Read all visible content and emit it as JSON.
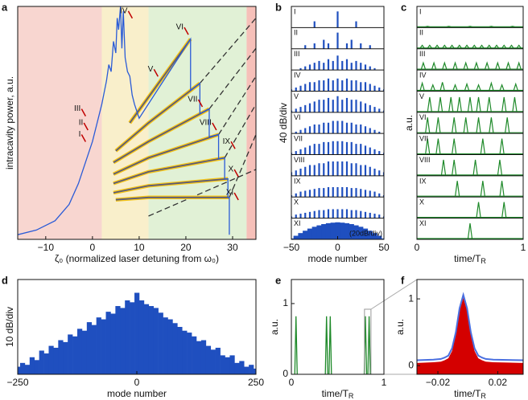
{
  "chart_data": [
    {
      "type": "line",
      "panel": "a",
      "xlabel": "ζ₀ (normalized laser detuning from ω₀)",
      "ylabel": "intracavity power, a.u.",
      "xlim": [
        -16,
        35
      ],
      "xticks": [
        {
          "value": -10,
          "label": "−10"
        },
        0,
        10,
        20,
        30
      ],
      "ylim": [
        0,
        1
      ],
      "regions": [
        {
          "x": [
            -16,
            2
          ],
          "color": "#f7cfc8"
        },
        {
          "x": [
            2,
            12
          ],
          "color": "#f8ecc2"
        },
        {
          "x": [
            12,
            33
          ],
          "color": "#dcefcf"
        },
        {
          "x": [
            33,
            35
          ],
          "color": "#f4b5ad"
        }
      ],
      "series": [
        {
          "color": "#333333",
          "dash": true,
          "x": [
            23,
            35
          ],
          "values": [
            0.67,
            0.95
          ]
        },
        {
          "color": "#333333",
          "dash": true,
          "x": [
            25,
            35
          ],
          "values": [
            0.56,
            0.82
          ]
        },
        {
          "color": "#333333",
          "dash": true,
          "x": [
            27,
            35
          ],
          "values": [
            0.45,
            0.7
          ]
        },
        {
          "color": "#333333",
          "dash": true,
          "x": [
            28.3,
            35
          ],
          "values": [
            0.35,
            0.58
          ]
        },
        {
          "color": "#333333",
          "dash": true,
          "x": [
            29.3,
            35
          ],
          "values": [
            0.18,
            0.45
          ]
        },
        {
          "color": "#333333",
          "dash": true,
          "x": [
            12,
            35
          ],
          "values": [
            0.1,
            0.3
          ]
        },
        {
          "color": "#5b5b7a",
          "halo": "#f5c518",
          "x": [
            8,
            21
          ],
          "values": [
            0.5,
            0.86
          ]
        },
        {
          "color": "#5b5b7a",
          "halo": "#f5c518",
          "x": [
            5,
            12,
            23
          ],
          "values": [
            0.38,
            0.5,
            0.67
          ]
        },
        {
          "color": "#5b5b7a",
          "halo": "#f5c518",
          "x": [
            4.5,
            12,
            25
          ],
          "values": [
            0.33,
            0.42,
            0.56
          ]
        },
        {
          "color": "#5b5b7a",
          "halo": "#f5c518",
          "x": [
            4.5,
            12,
            27
          ],
          "values": [
            0.28,
            0.35,
            0.45
          ]
        },
        {
          "color": "#5b5b7a",
          "halo": "#f5c518",
          "x": [
            4.5,
            12,
            28.3
          ],
          "values": [
            0.24,
            0.29,
            0.35
          ]
        },
        {
          "color": "#5b5b7a",
          "halo": "#f5c518",
          "x": [
            4.5,
            12,
            29
          ],
          "values": [
            0.2,
            0.23,
            0.26
          ]
        },
        {
          "color": "#5b5b7a",
          "halo": "#f5c518",
          "x": [
            5,
            12,
            29.3
          ],
          "values": [
            0.17,
            0.18,
            0.18
          ]
        },
        {
          "color": "#2a5bd7",
          "x": [
            -16,
            -12,
            -8,
            -5,
            -3,
            -1,
            0,
            1,
            2,
            3,
            3.5,
            4,
            4.5,
            5,
            5.3,
            5.6,
            6,
            6.3,
            6.6,
            7,
            7.5,
            8,
            8.5,
            9,
            10,
            21,
            21,
            23,
            23,
            25,
            25,
            27,
            27,
            28.3,
            28.3,
            29,
            29,
            29.3,
            29.3
          ],
          "values": [
            0.02,
            0.04,
            0.08,
            0.15,
            0.24,
            0.36,
            0.42,
            0.5,
            0.58,
            0.68,
            0.75,
            0.72,
            0.85,
            0.8,
            0.95,
            0.9,
            1.0,
            0.82,
            0.98,
            0.78,
            0.72,
            0.7,
            0.62,
            0.58,
            0.52,
            0.86,
            0.64,
            0.67,
            0.54,
            0.56,
            0.44,
            0.45,
            0.345,
            0.35,
            0.259,
            0.26,
            0.18,
            0.18,
            0.02
          ]
        }
      ],
      "annotation_color": "#c00000",
      "annotations": [
        {
          "text": "I",
          "x": -2.5,
          "y": 0.45
        },
        {
          "text": "II",
          "x": -2,
          "y": 0.5
        },
        {
          "text": "III",
          "x": -2.5,
          "y": 0.56
        },
        {
          "text": "IV",
          "x": 7.5,
          "y": 0.98
        },
        {
          "text": "V",
          "x": 13,
          "y": 0.73
        },
        {
          "text": "VI",
          "x": 19.5,
          "y": 0.91
        },
        {
          "text": "VII",
          "x": 22.5,
          "y": 0.6
        },
        {
          "text": "VIII",
          "x": 25.5,
          "y": 0.5
        },
        {
          "text": "IX",
          "x": 29.5,
          "y": 0.42
        },
        {
          "text": "X",
          "x": 30.2,
          "y": 0.3
        },
        {
          "text": "XI",
          "x": 30.2,
          "y": 0.2
        }
      ]
    },
    {
      "type": "spectra",
      "panel": "b",
      "xlabel": "mode number",
      "ylabel": "40 dB/div",
      "note": "(20dB/div)",
      "xlim": [
        -50,
        50
      ],
      "xticks": [
        {
          "value": -50,
          "label": "−50"
        },
        0,
        50
      ],
      "ylim": [
        0,
        1
      ],
      "color": "#1f4fbf",
      "label_color": "#c00000",
      "x": [
        -50,
        -45,
        -40,
        -35,
        -30,
        -25,
        -20,
        -15,
        -10,
        -5,
        0,
        5,
        10,
        15,
        20,
        25,
        30,
        35,
        40,
        45,
        50
      ],
      "series": [
        {
          "name": "I",
          "values": [
            0,
            0,
            0,
            0,
            0,
            0.35,
            0,
            0,
            0,
            0,
            0.9,
            0,
            0,
            0,
            0.35,
            0,
            0,
            0,
            0,
            0,
            0
          ]
        },
        {
          "name": "II",
          "values": [
            0,
            0,
            0,
            0.2,
            0,
            0.3,
            0,
            0.5,
            0.3,
            0,
            0.9,
            0,
            0.3,
            0.5,
            0,
            0.3,
            0,
            0.2,
            0,
            0,
            0
          ]
        },
        {
          "name": "III",
          "values": [
            0,
            0,
            0.1,
            0.2,
            0.3,
            0.4,
            0.5,
            0.4,
            0.6,
            0.5,
            0.8,
            0.5,
            0.6,
            0.4,
            0.5,
            0.4,
            0.3,
            0.2,
            0.1,
            0,
            0
          ]
        },
        {
          "name": "IV",
          "values": [
            0.1,
            0.2,
            0.3,
            0.4,
            0.5,
            0.5,
            0.6,
            0.6,
            0.7,
            0.6,
            0.7,
            0.6,
            0.7,
            0.6,
            0.6,
            0.5,
            0.5,
            0.4,
            0.3,
            0.2,
            0.1
          ]
        },
        {
          "name": "V",
          "values": [
            0.1,
            0.2,
            0.3,
            0.4,
            0.5,
            0.6,
            0.7,
            0.7,
            0.8,
            0.7,
            0.9,
            0.7,
            0.8,
            0.7,
            0.7,
            0.6,
            0.5,
            0.4,
            0.3,
            0.2,
            0.1
          ]
        },
        {
          "name": "VI",
          "values": [
            0,
            0.1,
            0.2,
            0.3,
            0.4,
            0.5,
            0.5,
            0.6,
            0.6,
            0.7,
            0.7,
            0.7,
            0.6,
            0.6,
            0.5,
            0.5,
            0.4,
            0.3,
            0.2,
            0.1,
            0
          ]
        },
        {
          "name": "VII",
          "values": [
            0.1,
            0.2,
            0.3,
            0.4,
            0.5,
            0.6,
            0.6,
            0.7,
            0.7,
            0.75,
            0.75,
            0.75,
            0.7,
            0.7,
            0.6,
            0.6,
            0.5,
            0.4,
            0.3,
            0.2,
            0.1
          ]
        },
        {
          "name": "VIII",
          "values": [
            0.2,
            0.3,
            0.4,
            0.5,
            0.6,
            0.6,
            0.7,
            0.7,
            0.8,
            0.8,
            0.8,
            0.8,
            0.8,
            0.7,
            0.7,
            0.6,
            0.6,
            0.5,
            0.4,
            0.3,
            0.2
          ]
        },
        {
          "name": "IX",
          "values": [
            0.1,
            0.2,
            0.3,
            0.35,
            0.4,
            0.45,
            0.5,
            0.5,
            0.55,
            0.55,
            0.55,
            0.55,
            0.55,
            0.5,
            0.5,
            0.45,
            0.4,
            0.35,
            0.3,
            0.2,
            0.1
          ]
        },
        {
          "name": "X",
          "values": [
            0.1,
            0.2,
            0.25,
            0.3,
            0.35,
            0.4,
            0.45,
            0.45,
            0.5,
            0.5,
            0.5,
            0.5,
            0.5,
            0.45,
            0.45,
            0.4,
            0.35,
            0.3,
            0.25,
            0.2,
            0.1
          ]
        },
        {
          "name": "XI",
          "fill": true,
          "values": [
            0.05,
            0.2,
            0.35,
            0.48,
            0.6,
            0.7,
            0.78,
            0.85,
            0.9,
            0.93,
            0.95,
            0.93,
            0.9,
            0.85,
            0.78,
            0.7,
            0.6,
            0.48,
            0.35,
            0.2,
            0.05
          ]
        }
      ]
    },
    {
      "type": "pulsestack",
      "panel": "c",
      "xlabel": "time/T",
      "xlabel_sub": "R",
      "ylabel": "a.u.",
      "xlim": [
        0,
        1
      ],
      "xticks": [
        0,
        1
      ],
      "ylim": [
        0,
        1
      ],
      "color": "#1f8a2a",
      "label_color": "#c00000",
      "series": [
        {
          "name": "I",
          "peaks": [
            0.1,
            0.3,
            0.5,
            0.7,
            0.9
          ],
          "heights": [
            0.03,
            0.03,
            0.03,
            0.03,
            0.03
          ]
        },
        {
          "name": "II",
          "peaks": [
            0.05,
            0.12,
            0.19,
            0.26,
            0.33,
            0.4,
            0.47,
            0.54,
            0.61,
            0.68,
            0.75,
            0.82,
            0.89,
            0.96
          ],
          "heights": [
            0.15,
            0.15,
            0.15,
            0.15,
            0.15,
            0.15,
            0.15,
            0.15,
            0.15,
            0.15,
            0.15,
            0.15,
            0.15,
            0.15
          ]
        },
        {
          "name": "III",
          "peaks": [
            0.06,
            0.16,
            0.26,
            0.36,
            0.46,
            0.56,
            0.66,
            0.76,
            0.86,
            0.96
          ],
          "heights": [
            0.35,
            0.35,
            0.35,
            0.35,
            0.35,
            0.35,
            0.35,
            0.35,
            0.35,
            0.35
          ]
        },
        {
          "name": "IV",
          "peaks": [
            0.05,
            0.15,
            0.24,
            0.36,
            0.47,
            0.58,
            0.7,
            0.8,
            0.93
          ],
          "heights": [
            0.4,
            0.3,
            0.45,
            0.3,
            0.35,
            0.3,
            0.4,
            0.3,
            0.35
          ]
        },
        {
          "name": "V",
          "peaks": [
            0.12,
            0.22,
            0.32,
            0.4,
            0.5,
            0.58,
            0.68,
            0.82,
            0.92
          ],
          "heights": [
            0.8,
            0.8,
            0.8,
            0.8,
            0.8,
            0.8,
            0.8,
            0.8,
            0.8
          ]
        },
        {
          "name": "VI",
          "peaks": [
            0.1,
            0.2,
            0.35,
            0.46,
            0.58,
            0.7,
            0.85
          ],
          "heights": [
            0.85,
            0.85,
            0.85,
            0.85,
            0.85,
            0.85,
            0.85
          ]
        },
        {
          "name": "VII",
          "peaks": [
            0.1,
            0.2,
            0.35,
            0.62,
            0.8
          ],
          "heights": [
            0.85,
            0.85,
            0.85,
            0.85,
            0.85
          ]
        },
        {
          "name": "VIII",
          "peaks": [
            0.25,
            0.35,
            0.55,
            0.78
          ],
          "heights": [
            0.85,
            0.85,
            0.85,
            0.85
          ]
        },
        {
          "name": "IX",
          "peaks": [
            0.38,
            0.62,
            0.8
          ],
          "heights": [
            0.85,
            0.85,
            0.85
          ]
        },
        {
          "name": "X",
          "peaks": [
            0.58,
            0.82
          ],
          "heights": [
            0.85,
            0.85
          ]
        },
        {
          "name": "XI",
          "peaks": [
            0.5
          ],
          "heights": [
            0.85
          ]
        }
      ]
    },
    {
      "type": "bar",
      "panel": "d",
      "xlabel": "mode number",
      "ylabel": "10 dB/div",
      "xlim": [
        -250,
        250
      ],
      "xticks": [
        {
          "value": -250,
          "label": "−250"
        },
        0,
        250
      ],
      "ylim": [
        0,
        1
      ],
      "color": "#1f4fbf",
      "x": [
        -250,
        -240,
        -230,
        -220,
        -210,
        -200,
        -190,
        -180,
        -170,
        -160,
        -150,
        -140,
        -130,
        -120,
        -110,
        -100,
        -90,
        -80,
        -70,
        -60,
        -50,
        -40,
        -30,
        -20,
        -10,
        0,
        10,
        20,
        30,
        40,
        50,
        60,
        70,
        80,
        90,
        100,
        110,
        120,
        130,
        140,
        150,
        160,
        170,
        180,
        190,
        200,
        210,
        220,
        230,
        240,
        250
      ],
      "values": [
        0.08,
        0.12,
        0.1,
        0.18,
        0.15,
        0.25,
        0.22,
        0.3,
        0.28,
        0.36,
        0.34,
        0.42,
        0.4,
        0.48,
        0.46,
        0.55,
        0.52,
        0.6,
        0.58,
        0.66,
        0.64,
        0.72,
        0.7,
        0.78,
        0.76,
        0.86,
        0.78,
        0.74,
        0.72,
        0.7,
        0.65,
        0.6,
        0.58,
        0.54,
        0.5,
        0.46,
        0.44,
        0.4,
        0.35,
        0.36,
        0.3,
        0.26,
        0.28,
        0.2,
        0.18,
        0.2,
        0.12,
        0.14,
        0.08,
        0.1,
        0.06
      ]
    },
    {
      "type": "pulse",
      "panel": "e",
      "xlabel": "time/T",
      "xlabel_sub": "R",
      "ylabel": "a.u.",
      "xlim": [
        0,
        1
      ],
      "xticks": [
        0,
        1
      ],
      "ylim": [
        0,
        1.34
      ],
      "yticks": [
        0,
        1
      ],
      "color": "#1f8a2a",
      "peaks": [
        0.05,
        0.38,
        0.42,
        0.8,
        0.84
      ],
      "heights": [
        0.82,
        0.82,
        0.82,
        0.82,
        0.82
      ],
      "zoom_box": {
        "x": [
          0.79,
          0.86
        ],
        "y": [
          0,
          0.92
        ]
      }
    },
    {
      "type": "area",
      "panel": "f",
      "xlabel": "time/T",
      "xlabel_sub": "R",
      "ylabel": "a.u.",
      "xlim": [
        -0.034,
        0.037
      ],
      "xticks": [
        {
          "value": -0.02,
          "label": "−0.02"
        },
        0.02
      ],
      "ylim": [
        -0.13,
        1.29
      ],
      "yticks": [
        0,
        1
      ],
      "x": [
        -0.034,
        -0.023,
        -0.018,
        -0.0155,
        -0.013,
        -0.0105,
        -0.008,
        -0.0055,
        -0.003,
        -0.0005,
        0.002,
        0.0045,
        0.007,
        0.0095,
        0.012,
        0.017,
        0.037
      ],
      "series": [
        {
          "color": "#d40000",
          "fill": true,
          "values": [
            0.04,
            0.05,
            0.06,
            0.08,
            0.11,
            0.22,
            0.46,
            0.82,
            1.02,
            0.82,
            0.46,
            0.22,
            0.11,
            0.08,
            0.06,
            0.05,
            0.04
          ]
        },
        {
          "color": "#4a6fe0",
          "values": [
            0.08,
            0.09,
            0.1,
            0.12,
            0.15,
            0.26,
            0.5,
            0.86,
            1.06,
            0.86,
            0.5,
            0.26,
            0.15,
            0.12,
            0.1,
            0.09,
            0.08
          ]
        }
      ]
    }
  ]
}
